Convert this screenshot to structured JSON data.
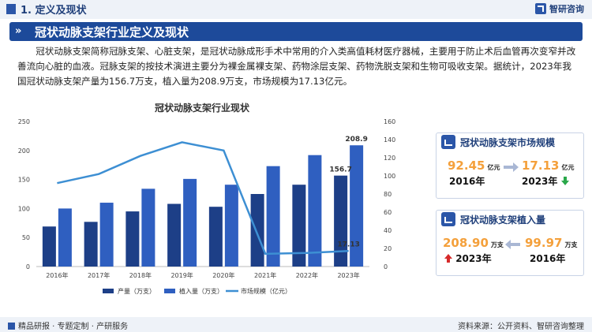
{
  "header": {
    "section": "1. 定义及现状",
    "logo": "智研咨询"
  },
  "banner": {
    "title": "冠状动脉支架行业定义及现状"
  },
  "paragraph": "冠状动脉支架简称冠脉支架、心脏支架，是冠状动脉成形手术中常用的介入类高值耗材医疗器械，主要用于防止术后血管再次变窄并改善流向心脏的血液。冠脉支架的按技术演进主要分为裸金属裸支架、药物涂层支架、药物洗脱支架和生物可吸收支架。据统计，2023年我国冠状动脉支架产量为156.7万支，植入量为208.9万支，市场规模为17.13亿元。",
  "chart_data": {
    "type": "bar",
    "title": "冠状动脉支架行业现状",
    "categories": [
      "2016年",
      "2017年",
      "2018年",
      "2019年",
      "2020年",
      "2021年",
      "2022年",
      "2023年"
    ],
    "series": [
      {
        "name": "产量（万支）",
        "type": "bar",
        "axis": "left",
        "color": "#1d3f87",
        "values": [
          69,
          77,
          95,
          108,
          103,
          125,
          141,
          156.7
        ]
      },
      {
        "name": "植入量（万支）",
        "type": "bar",
        "axis": "left",
        "color": "#2f5fc0",
        "values": [
          100,
          110,
          134,
          151,
          141,
          173,
          192,
          208.9
        ]
      },
      {
        "name": "市场规模（亿元）",
        "type": "line",
        "axis": "right",
        "color": "#3d8fd3",
        "values": [
          92,
          102,
          122,
          137,
          128,
          14,
          15,
          17.13
        ]
      }
    ],
    "ylim": [
      0,
      250
    ],
    "yticks": [
      0,
      50,
      100,
      150,
      200,
      250
    ],
    "y2lim": [
      0,
      160
    ],
    "y2ticks": [
      0,
      20,
      40,
      60,
      80,
      100,
      120,
      140,
      160
    ],
    "data_labels": [
      {
        "series": 0,
        "index": 7,
        "text": "156.7"
      },
      {
        "series": 1,
        "index": 7,
        "text": "208.9"
      },
      {
        "series": 2,
        "index": 7,
        "text": "17.13"
      }
    ],
    "legend_position": "bottom",
    "grid": false
  },
  "card_market": {
    "title": "冠状动脉支架市场规模",
    "left_value": "92.45",
    "left_unit": "亿元",
    "left_year": "2016年",
    "right_value": "17.13",
    "right_unit": "亿元",
    "right_year": "2023年",
    "trend": "down",
    "trend_color": "#2aa84a"
  },
  "card_implant": {
    "title": "冠状动脉支架植入量",
    "left_value": "208.90",
    "left_unit": "万支",
    "left_year": "2023年",
    "right_value": "99.97",
    "right_unit": "万支",
    "right_year": "2016年",
    "trend": "up",
    "trend_color": "#d62a2a"
  },
  "footer": {
    "left": "精品研报 · 专题定制 · 产研服务",
    "right": "资料来源：公开资料、智研咨询整理"
  }
}
